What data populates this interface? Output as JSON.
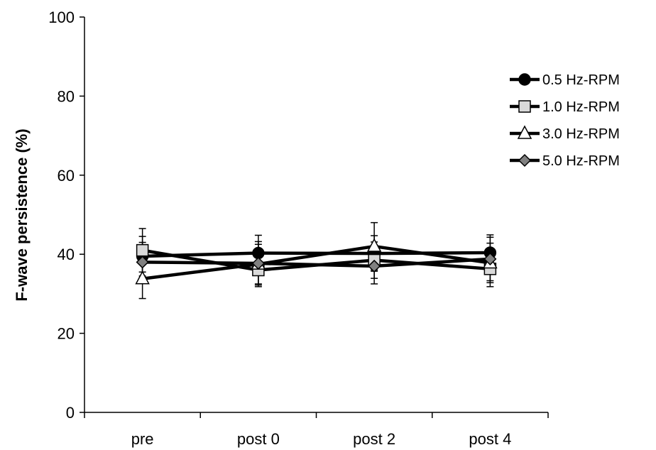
{
  "chart_data": {
    "type": "line",
    "title": "",
    "xlabel": "",
    "ylabel": "F-wave persistence (%)",
    "categories": [
      "pre",
      "post 0",
      "post 2",
      "post 4"
    ],
    "ylim": [
      0,
      100
    ],
    "yticks": [
      "0",
      "20",
      "40",
      "60",
      "80",
      "100"
    ],
    "legend_position": "right",
    "series": [
      {
        "name": "0.5 Hz-RPM",
        "marker": "circle",
        "fill": "#000000",
        "values": [
          39.5,
          40.3,
          40.2,
          40.4
        ],
        "errors": [
          5.0,
          4.5,
          4.5,
          4.5
        ]
      },
      {
        "name": "1.0 Hz-RPM",
        "marker": "square",
        "fill": "#d9d9d9",
        "values": [
          41.0,
          36.0,
          38.5,
          36.3
        ],
        "errors": [
          5.5,
          4.2,
          4.6,
          4.5
        ]
      },
      {
        "name": "3.0 Hz-RPM",
        "marker": "triangle",
        "fill": "#ffffff",
        "values": [
          33.8,
          37.5,
          42.0,
          37.8
        ],
        "errors": [
          5.0,
          5.0,
          6.0,
          5.0
        ]
      },
      {
        "name": "5.0 Hz-RPM",
        "marker": "diamond",
        "fill": "#808080",
        "values": [
          38.0,
          37.7,
          37.0,
          38.8
        ],
        "errors": [
          5.0,
          5.5,
          4.5,
          5.5
        ]
      }
    ]
  }
}
